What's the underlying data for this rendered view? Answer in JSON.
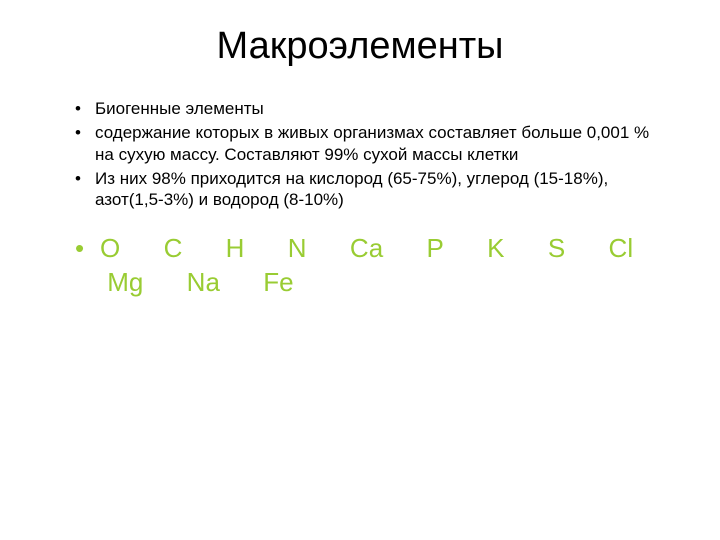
{
  "title": {
    "text": "Макроэлементы",
    "fontsize": 38,
    "color": "#000000"
  },
  "small_bullets": {
    "items": [
      "Биогенные элементы",
      "содержание которых в живых организмах составляет больше 0,001 % на сухую массу. Составляют 99% сухой массы клетки",
      "Из них 98% приходится на кислород (65-75%), углерод (15-18%), азот(1,5-3%) и водород (8-10%)"
    ],
    "fontsize": 17,
    "color": "#000000",
    "bullet_color": "#000000"
  },
  "elements": {
    "line1": "O      C      H      N      Ca      P      K      S      Cl     ",
    "line2": " Mg      Na      Fe",
    "fontsize": 26,
    "color": "#99cc33",
    "bullet_color": "#99cc33"
  },
  "background_color": "#ffffff"
}
